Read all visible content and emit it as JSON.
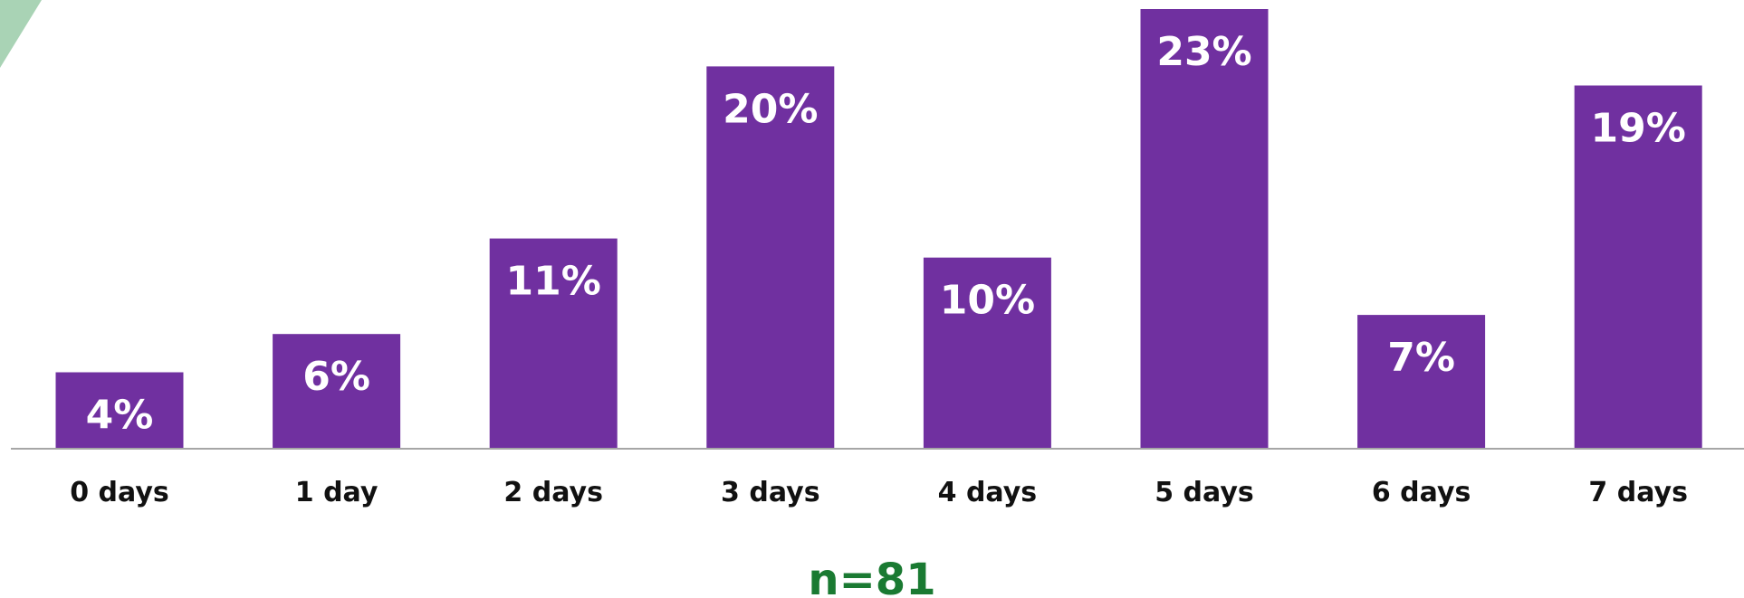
{
  "chart_data": {
    "type": "bar",
    "categories": [
      "0 days",
      "1 day",
      "2 days",
      "3 days",
      "4 days",
      "5 days",
      "6 days",
      "7 days"
    ],
    "values": [
      4,
      6,
      11,
      20,
      10,
      23,
      7,
      19
    ],
    "value_labels": [
      "4%",
      "6%",
      "11%",
      "20%",
      "10%",
      "23%",
      "7%",
      "19%"
    ],
    "ylim": [
      0,
      23
    ],
    "grid": false,
    "annotation": "n=81",
    "colors": {
      "bar": "#7030a0",
      "label": "#ffffff",
      "annotation": "#1a7a32",
      "axis": "#a6a6a6",
      "corner_accent": "#a9d3b5"
    }
  }
}
